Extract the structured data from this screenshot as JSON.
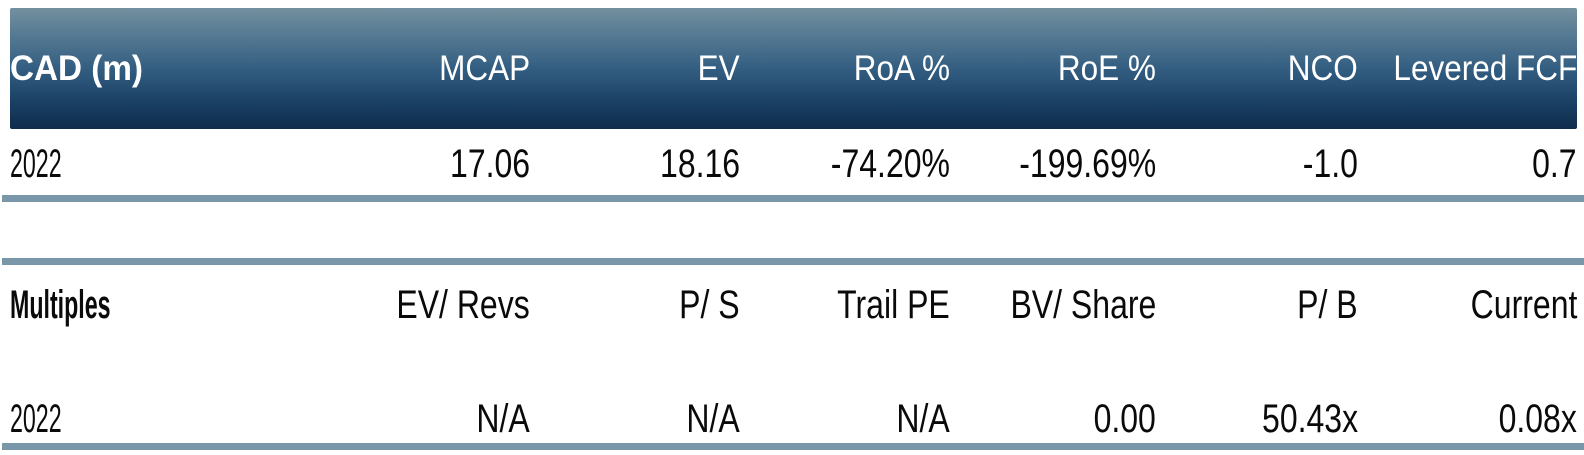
{
  "colors": {
    "header_gradient_top": "#73909f",
    "header_gradient_bottom": "#0f2c4c",
    "divider_bar": "#7a97a9",
    "header_text": "#ffffff",
    "body_text": "#0a0a0a"
  },
  "financials": {
    "headers": [
      "CAD (m)",
      "MCAP",
      "EV",
      "RoA %",
      "RoE %",
      "NCO",
      "Levered FCF"
    ],
    "rows": [
      [
        "2022",
        "17.06",
        "18.16",
        "-74.20%",
        "-199.69%",
        "-1.0",
        "0.7"
      ]
    ]
  },
  "multiples": {
    "headers": [
      "Multiples",
      "EV/ Revs",
      "P/ S",
      "Trail PE",
      "BV/ Share",
      "P/ B",
      "Current"
    ],
    "rows": [
      [
        "2022",
        "N/A",
        "N/A",
        "N/A",
        "0.00",
        "50.43x",
        "0.08x"
      ]
    ]
  }
}
